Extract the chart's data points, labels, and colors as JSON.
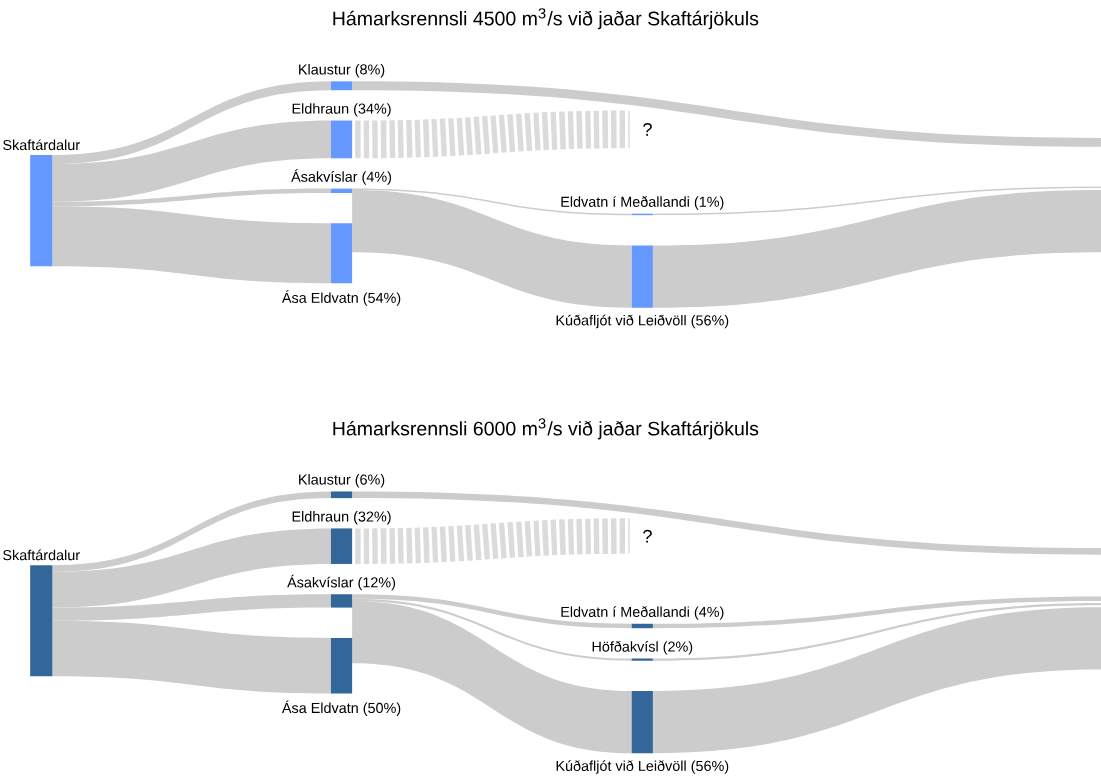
{
  "chart_data": [
    {
      "type": "other",
      "title": "Hámarksrennsli 4500 m$^{3}$/s við jaðar Skaftárjökuls",
      "color": "#6699ff",
      "categories": [
        "Klaustur",
        "Eldhraun",
        "Ásakvíslar",
        "Ása Eldvatn",
        "Eldvatn í Meðallandi",
        "Kúðafljót við Leiðvöll"
      ],
      "values": [
        8,
        34,
        4,
        54,
        1,
        56
      ],
      "value_labels": [
        "(8%)",
        "(34%)",
        "(4%)",
        "(54%)",
        "(1%)",
        "(56%)"
      ],
      "annotations": [
        "Skaftárdalur",
        "?"
      ]
    },
    {
      "type": "other",
      "title": "Hámarksrennsli 6000 m$^{3}$/s við jaðar Skaftárjökuls",
      "color": "#336699",
      "categories": [
        "Klaustur",
        "Eldhraun",
        "Ásakvíslar",
        "Ása Eldvatn",
        "Eldvatn í Meðallandi",
        "Höfðakvísl",
        "Kúðafljót við Leiðvöll"
      ],
      "values": [
        6,
        32,
        12,
        50,
        4,
        2,
        56
      ],
      "value_labels": [
        "(6%)",
        "(32%)",
        "(12%)",
        "(50%)",
        "(4%)",
        "(2%)",
        "(56%)"
      ],
      "annotations": [
        "Skaftárdalur",
        "?"
      ]
    }
  ]
}
